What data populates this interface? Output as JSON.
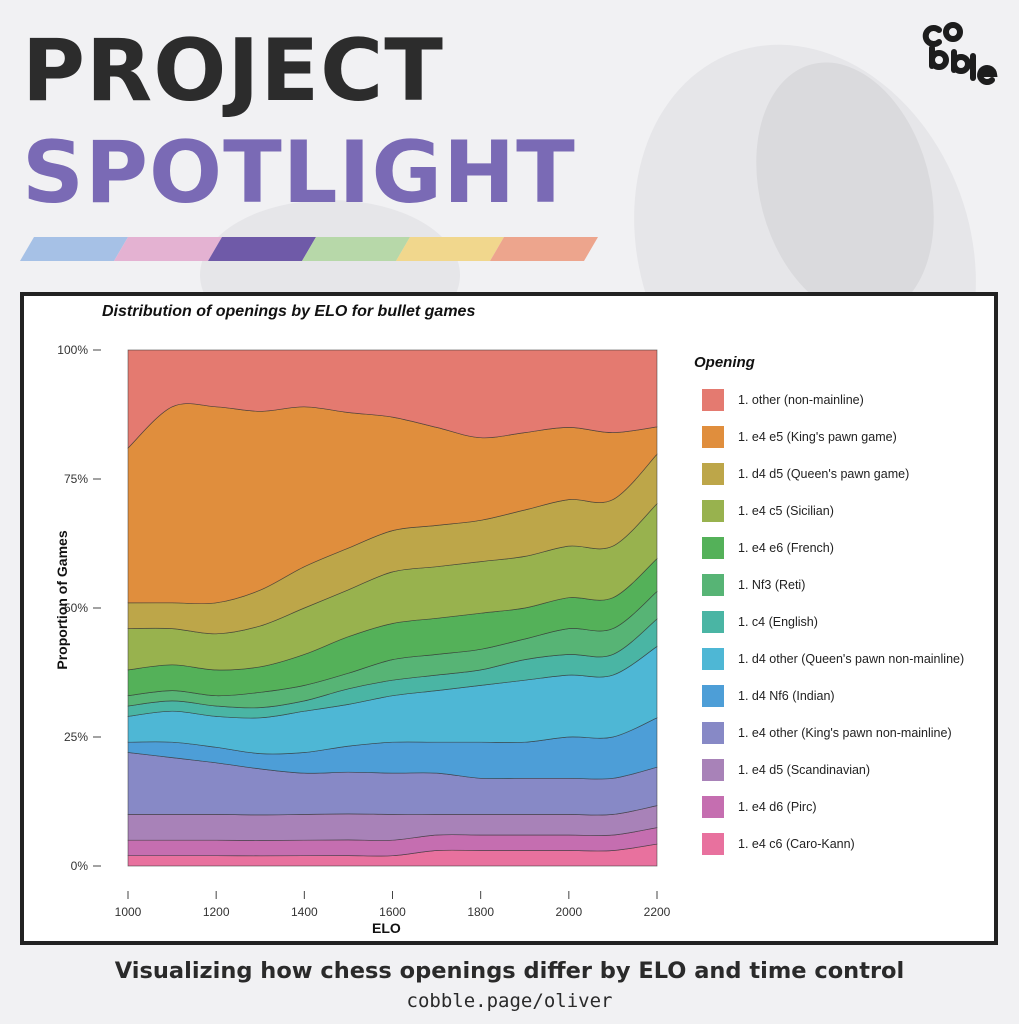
{
  "header": {
    "line1": "PROJECT",
    "line2": "SPOTLIGHT",
    "stripe_colors": [
      "#a6c1e6",
      "#e4b2d2",
      "#6f5aa8",
      "#b7d8a9",
      "#f1d78d",
      "#eda58d"
    ],
    "logo_text": "cobble"
  },
  "chart_data": {
    "type": "area",
    "stacked": true,
    "title": "Distribution of openings by ELO for bullet games",
    "xlabel": "ELO",
    "ylabel": "Proportion of Games",
    "xlim": [
      1000,
      2200
    ],
    "ylim": [
      0,
      1
    ],
    "x_ticks": [
      1000,
      1200,
      1400,
      1600,
      1800,
      2000,
      2200
    ],
    "x_tick_labels": [
      "1000",
      "1200",
      "1400",
      "1600",
      "1800",
      "2000",
      "2200"
    ],
    "y_ticks": [
      0,
      0.25,
      0.5,
      0.75,
      1
    ],
    "y_tick_labels": [
      "0%",
      "25%",
      "50%",
      "75%",
      "100%"
    ],
    "legend_title": "Opening",
    "legend_position": "right",
    "x": [
      1000,
      1100,
      1200,
      1300,
      1400,
      1500,
      1600,
      1700,
      1800,
      1900,
      2000,
      2100,
      2200
    ],
    "series": [
      {
        "name": "1. e4 c6 (Caro-Kann)",
        "color": "#e8719e",
        "values": [
          0.02,
          0.02,
          0.02,
          0.02,
          0.02,
          0.02,
          0.02,
          0.03,
          0.03,
          0.03,
          0.03,
          0.03,
          0.04
        ]
      },
      {
        "name": "1. e4 d6 (Pirc)",
        "color": "#c56eb0",
        "values": [
          0.03,
          0.03,
          0.03,
          0.03,
          0.03,
          0.03,
          0.03,
          0.03,
          0.03,
          0.03,
          0.03,
          0.03,
          0.03
        ]
      },
      {
        "name": "1. e4 d5 (Scandinavian)",
        "color": "#a882b8",
        "values": [
          0.05,
          0.05,
          0.05,
          0.05,
          0.05,
          0.05,
          0.05,
          0.04,
          0.04,
          0.04,
          0.04,
          0.04,
          0.04
        ]
      },
      {
        "name": "1. e4 other (King's pawn non-mainline)",
        "color": "#8789c6",
        "values": [
          0.12,
          0.11,
          0.1,
          0.09,
          0.08,
          0.08,
          0.08,
          0.08,
          0.07,
          0.07,
          0.07,
          0.07,
          0.07
        ]
      },
      {
        "name": "1. d4 Nf6 (Indian)",
        "color": "#4d9ed7",
        "values": [
          0.02,
          0.03,
          0.03,
          0.03,
          0.04,
          0.05,
          0.06,
          0.06,
          0.07,
          0.07,
          0.08,
          0.08,
          0.09
        ]
      },
      {
        "name": "1. d4 other (Queen's pawn non-mainline)",
        "color": "#4eb7d5",
        "values": [
          0.05,
          0.06,
          0.06,
          0.07,
          0.08,
          0.08,
          0.09,
          0.1,
          0.11,
          0.12,
          0.12,
          0.12,
          0.13
        ]
      },
      {
        "name": "1. c4 (English)",
        "color": "#4ab5a4",
        "values": [
          0.02,
          0.02,
          0.02,
          0.02,
          0.02,
          0.03,
          0.03,
          0.03,
          0.03,
          0.04,
          0.04,
          0.04,
          0.05
        ]
      },
      {
        "name": "1. Nf3 (Reti)",
        "color": "#57b475",
        "values": [
          0.02,
          0.02,
          0.02,
          0.03,
          0.03,
          0.03,
          0.04,
          0.04,
          0.04,
          0.04,
          0.05,
          0.05,
          0.05
        ]
      },
      {
        "name": "1. e4 e6 (French)",
        "color": "#54b159",
        "values": [
          0.05,
          0.05,
          0.05,
          0.05,
          0.06,
          0.07,
          0.07,
          0.07,
          0.07,
          0.06,
          0.06,
          0.06,
          0.06
        ]
      },
      {
        "name": "1. e4 c5 (Sicilian)",
        "color": "#98b24e",
        "values": [
          0.08,
          0.07,
          0.07,
          0.08,
          0.09,
          0.09,
          0.1,
          0.1,
          0.1,
          0.1,
          0.1,
          0.1,
          0.1
        ]
      },
      {
        "name": "1. d4 d5 (Queen's pawn game)",
        "color": "#bda649",
        "values": [
          0.05,
          0.05,
          0.06,
          0.07,
          0.08,
          0.08,
          0.08,
          0.08,
          0.08,
          0.09,
          0.09,
          0.09,
          0.09
        ]
      },
      {
        "name": "1. e4 e5 (King's pawn game)",
        "color": "#e08e3d",
        "values": [
          0.3,
          0.38,
          0.38,
          0.35,
          0.31,
          0.26,
          0.22,
          0.19,
          0.16,
          0.15,
          0.14,
          0.13,
          0.05
        ]
      },
      {
        "name": "1. other (non-mainline)",
        "color": "#e47a70",
        "values": [
          0.19,
          0.11,
          0.11,
          0.12,
          0.11,
          0.12,
          0.13,
          0.15,
          0.17,
          0.16,
          0.15,
          0.16,
          0.14
        ]
      }
    ]
  },
  "caption": "Visualizing how chess openings differ by ELO and time control",
  "url": "cobble.page/oliver"
}
